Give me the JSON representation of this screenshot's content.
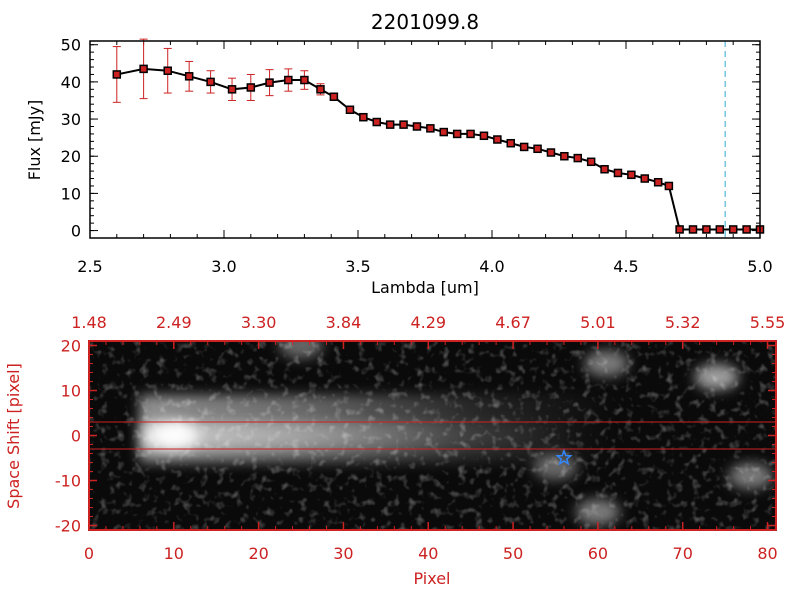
{
  "chart_data": [
    {
      "type": "line",
      "title": "2201099.8",
      "xlabel": "Lambda [um]",
      "ylabel": "Flux [mJy]",
      "xlim": [
        2.5,
        5.0
      ],
      "ylim": [
        -2,
        51
      ],
      "xticks": [
        "2.5",
        "3.0",
        "3.5",
        "4.0",
        "4.5",
        "5.0"
      ],
      "yticks": [
        "0",
        "10",
        "20",
        "30",
        "40",
        "50"
      ],
      "grid": false,
      "line_color": "#000000",
      "marker_color": "#cc2222",
      "errorbar_color": "#cc2222",
      "vline": {
        "x": 4.87,
        "color": "#33aacc"
      },
      "series": [
        {
          "x": [
            2.6,
            2.7,
            2.79,
            2.87,
            2.95,
            3.03,
            3.1,
            3.17,
            3.24,
            3.3,
            3.36,
            3.41,
            3.47,
            3.52,
            3.57,
            3.62,
            3.67,
            3.72,
            3.77,
            3.82,
            3.87,
            3.92,
            3.97,
            4.02,
            4.07,
            4.12,
            4.17,
            4.22,
            4.27,
            4.32,
            4.37,
            4.42,
            4.47,
            4.52,
            4.57,
            4.62,
            4.66,
            4.7,
            4.75,
            4.8,
            4.85,
            4.9,
            4.95,
            5.0
          ],
          "y": [
            42.0,
            43.5,
            43.0,
            41.5,
            40.0,
            38.0,
            38.5,
            39.8,
            40.5,
            40.5,
            38.0,
            36.0,
            32.5,
            30.5,
            29.2,
            28.5,
            28.5,
            28.0,
            27.5,
            26.5,
            26.0,
            26.0,
            25.5,
            24.5,
            23.5,
            22.5,
            22.0,
            21.0,
            20.0,
            19.5,
            18.5,
            16.5,
            15.5,
            15.0,
            14.0,
            13.0,
            12.0,
            0.3,
            0.3,
            0.3,
            0.3,
            0.3,
            0.3,
            0.3
          ],
          "yerr": [
            7.5,
            8.0,
            6.0,
            4.0,
            3.0,
            3.0,
            3.5,
            3.5,
            3.0,
            2.5,
            1.5,
            0,
            0,
            0,
            0,
            0,
            0,
            0,
            0,
            0,
            0,
            0,
            0,
            0,
            0,
            0,
            0,
            0,
            0,
            0,
            0,
            0,
            0,
            0,
            0,
            0,
            0,
            0,
            0,
            0,
            0,
            0,
            0,
            0
          ]
        }
      ]
    },
    {
      "type": "heatmap",
      "xlabel": "Pixel",
      "ylabel": "Space Shift [pixel]",
      "xlim": [
        0,
        81
      ],
      "ylim": [
        -21,
        21
      ],
      "xticks": [
        "0",
        "10",
        "20",
        "30",
        "40",
        "50",
        "60",
        "70",
        "80"
      ],
      "yticks": [
        "-20",
        "-10",
        "0",
        "10",
        "20"
      ],
      "top_axis_labels": [
        "1.48",
        "2.49",
        "3.30",
        "3.84",
        "4.29",
        "4.67",
        "5.01",
        "5.32",
        "5.55"
      ],
      "colormap": "grayscale",
      "frame_color": "#cc2222",
      "extraction_band": {
        "y_low": -3,
        "y_high": 3,
        "color": "#cc2222"
      },
      "source_marker": {
        "x": 56,
        "y": -5,
        "symbol": "star",
        "color": "#3388ff"
      },
      "blobs": [
        {
          "x": 8,
          "y": 0,
          "intensity": 1.0
        },
        {
          "x": 55,
          "y": -7,
          "intensity": 0.25
        },
        {
          "x": 60,
          "y": -17,
          "intensity": 0.3
        },
        {
          "x": 61,
          "y": 16,
          "intensity": 0.3
        },
        {
          "x": 74,
          "y": 13,
          "intensity": 0.4
        },
        {
          "x": 78,
          "y": -9,
          "intensity": 0.3
        },
        {
          "x": 25,
          "y": 20,
          "intensity": 0.25
        }
      ]
    }
  ]
}
